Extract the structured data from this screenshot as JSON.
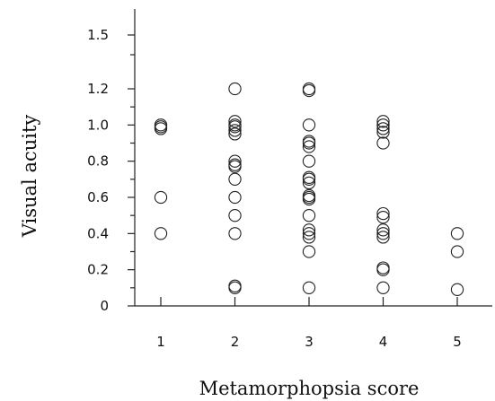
{
  "chart_data": {
    "type": "scatter",
    "title": "",
    "xlabel": "Metamorphopsia score",
    "ylabel": "Visual acuity",
    "x_ticks": [
      "1",
      "2",
      "3",
      "4",
      "5"
    ],
    "y_ticks": [
      "0",
      "0.2",
      "0.4",
      "0.6",
      "0.8",
      "1.0",
      "1.2",
      "1.5"
    ],
    "xlim": [
      0.5,
      5.5
    ],
    "ylim": [
      0,
      1.5
    ],
    "y_scale_note": "broken scale between 1.2 and 1.5",
    "grid": false,
    "legend": "none",
    "marker": "open-circle",
    "points": [
      {
        "x": 1,
        "y": 1.0
      },
      {
        "x": 1,
        "y": 0.99
      },
      {
        "x": 1,
        "y": 0.98
      },
      {
        "x": 1,
        "y": 0.6
      },
      {
        "x": 1,
        "y": 0.4
      },
      {
        "x": 2,
        "y": 1.2
      },
      {
        "x": 2,
        "y": 1.02
      },
      {
        "x": 2,
        "y": 1.0
      },
      {
        "x": 2,
        "y": 0.99
      },
      {
        "x": 2,
        "y": 0.97
      },
      {
        "x": 2,
        "y": 0.95
      },
      {
        "x": 2,
        "y": 0.8
      },
      {
        "x": 2,
        "y": 0.78
      },
      {
        "x": 2,
        "y": 0.77
      },
      {
        "x": 2,
        "y": 0.7
      },
      {
        "x": 2,
        "y": 0.6
      },
      {
        "x": 2,
        "y": 0.5
      },
      {
        "x": 2,
        "y": 0.4
      },
      {
        "x": 2,
        "y": 0.11
      },
      {
        "x": 2,
        "y": 0.1
      },
      {
        "x": 3,
        "y": 1.2
      },
      {
        "x": 3,
        "y": 1.19
      },
      {
        "x": 3,
        "y": 1.0
      },
      {
        "x": 3,
        "y": 0.91
      },
      {
        "x": 3,
        "y": 0.9
      },
      {
        "x": 3,
        "y": 0.88
      },
      {
        "x": 3,
        "y": 0.8
      },
      {
        "x": 3,
        "y": 0.71
      },
      {
        "x": 3,
        "y": 0.7
      },
      {
        "x": 3,
        "y": 0.68
      },
      {
        "x": 3,
        "y": 0.61
      },
      {
        "x": 3,
        "y": 0.6
      },
      {
        "x": 3,
        "y": 0.59
      },
      {
        "x": 3,
        "y": 0.5
      },
      {
        "x": 3,
        "y": 0.42
      },
      {
        "x": 3,
        "y": 0.4
      },
      {
        "x": 3,
        "y": 0.38
      },
      {
        "x": 3,
        "y": 0.3
      },
      {
        "x": 3,
        "y": 0.1
      },
      {
        "x": 4,
        "y": 1.02
      },
      {
        "x": 4,
        "y": 1.0
      },
      {
        "x": 4,
        "y": 0.98
      },
      {
        "x": 4,
        "y": 0.96
      },
      {
        "x": 4,
        "y": 0.9
      },
      {
        "x": 4,
        "y": 0.51
      },
      {
        "x": 4,
        "y": 0.49
      },
      {
        "x": 4,
        "y": 0.42
      },
      {
        "x": 4,
        "y": 0.4
      },
      {
        "x": 4,
        "y": 0.38
      },
      {
        "x": 4,
        "y": 0.21
      },
      {
        "x": 4,
        "y": 0.2
      },
      {
        "x": 4,
        "y": 0.1
      },
      {
        "x": 5,
        "y": 0.4
      },
      {
        "x": 5,
        "y": 0.3
      },
      {
        "x": 5,
        "y": 0.09
      }
    ]
  }
}
